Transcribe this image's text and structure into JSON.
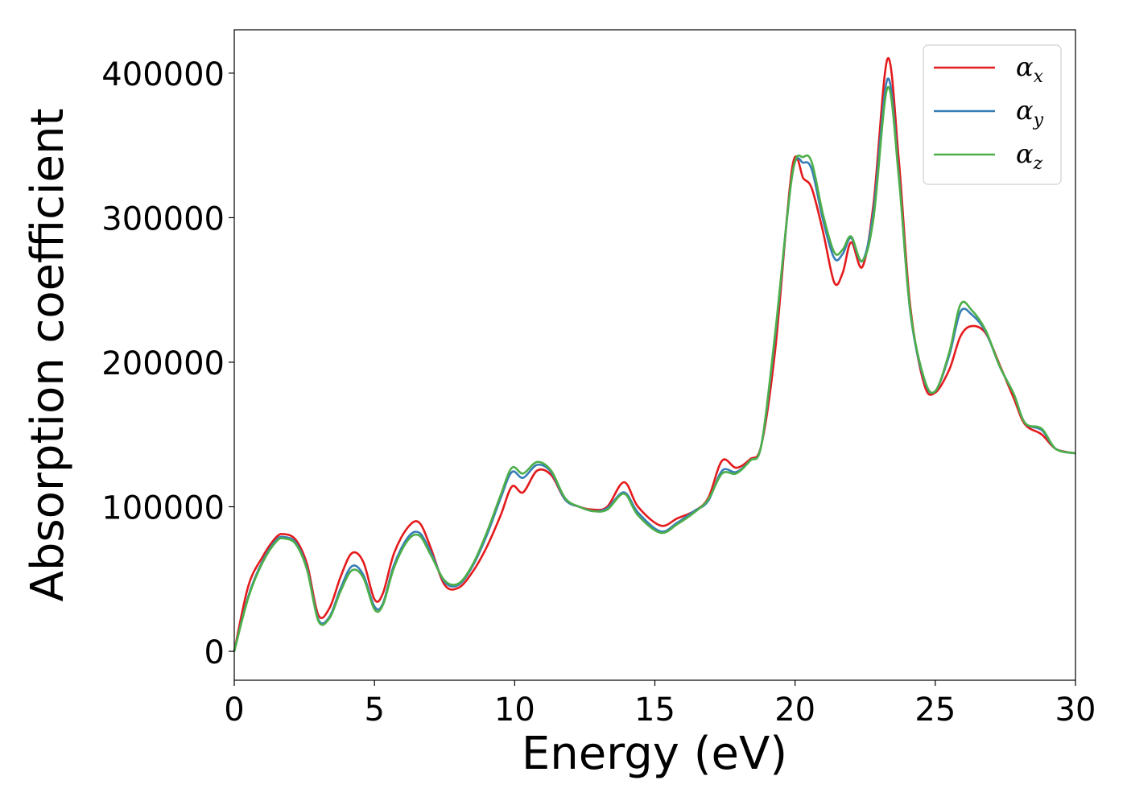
{
  "chart_data": {
    "type": "line",
    "xlabel": "Energy (eV)",
    "ylabel": "Absorption coefficient",
    "xlim": [
      0,
      30
    ],
    "ylim": [
      -20000,
      430000
    ],
    "xticks": [
      0,
      5,
      10,
      15,
      20,
      25,
      30
    ],
    "xtick_labels": [
      "0",
      "5",
      "10",
      "15",
      "20",
      "25",
      "30"
    ],
    "yticks": [
      0,
      100000,
      200000,
      300000,
      400000
    ],
    "ytick_labels": [
      "0",
      "100000",
      "200000",
      "300000",
      "400000"
    ],
    "grid": false,
    "legend_position": "top-right",
    "x": [
      0,
      0.5,
      1,
      1.5,
      1.8,
      2.2,
      2.6,
      3.0,
      3.4,
      3.8,
      4.2,
      4.6,
      5.0,
      5.3,
      5.7,
      6.2,
      6.6,
      7.0,
      7.5,
      8.0,
      8.5,
      9.0,
      9.5,
      9.9,
      10.3,
      10.8,
      11.3,
      11.8,
      12.3,
      12.8,
      13.3,
      13.9,
      14.4,
      15.2,
      15.8,
      16.4,
      16.9,
      17.4,
      17.9,
      18.4,
      18.8,
      19.3,
      19.9,
      20.3,
      20.6,
      21.0,
      21.4,
      21.7,
      22.0,
      22.4,
      22.8,
      23.3,
      23.7,
      24.1,
      24.6,
      25.0,
      25.5,
      25.9,
      26.3,
      26.8,
      27.3,
      27.8,
      28.2,
      28.8,
      29.3,
      30.0
    ],
    "series": [
      {
        "name": "αx",
        "color": "#e41a1c",
        "values": [
          0,
          45000,
          65000,
          79000,
          81000,
          77000,
          60000,
          25000,
          30000,
          52000,
          68000,
          62000,
          36000,
          40000,
          68000,
          86000,
          89000,
          72000,
          46000,
          44000,
          55000,
          72000,
          94000,
          114000,
          110000,
          125000,
          122000,
          105000,
          100000,
          98000,
          100000,
          117000,
          100000,
          87000,
          92000,
          97000,
          106000,
          132000,
          127000,
          133000,
          143000,
          210000,
          335000,
          327000,
          320000,
          290000,
          255000,
          262000,
          283000,
          266000,
          310000,
          410000,
          340000,
          240000,
          185000,
          179000,
          195000,
          218000,
          225000,
          220000,
          198000,
          175000,
          157000,
          150000,
          140000,
          137000
        ]
      },
      {
        "name": "αy",
        "color": "#377eb8",
        "values": [
          0,
          38000,
          62000,
          77000,
          79000,
          75000,
          57000,
          22000,
          24000,
          44000,
          59000,
          53000,
          31000,
          33000,
          60000,
          79000,
          82000,
          69000,
          48000,
          46000,
          59000,
          80000,
          106000,
          124000,
          120000,
          129000,
          124000,
          105000,
          100000,
          97000,
          99000,
          110000,
          96000,
          83000,
          89000,
          97000,
          104000,
          125000,
          124000,
          132000,
          143000,
          220000,
          330000,
          338000,
          333000,
          298000,
          272000,
          275000,
          286000,
          270000,
          305000,
          396000,
          330000,
          236000,
          188000,
          180000,
          205000,
          235000,
          233000,
          221000,
          197000,
          178000,
          158000,
          153000,
          140000,
          137000
        ]
      },
      {
        "name": "αz",
        "color": "#4daf4a",
        "values": [
          0,
          37000,
          61000,
          76000,
          78000,
          74000,
          56000,
          21000,
          23000,
          42000,
          56000,
          51000,
          29000,
          32000,
          58000,
          77000,
          80000,
          67000,
          49000,
          47000,
          60000,
          82000,
          108000,
          127000,
          123000,
          131000,
          125000,
          106000,
          100000,
          97000,
          98000,
          109000,
          94000,
          82000,
          88000,
          96000,
          105000,
          123000,
          123000,
          132000,
          143000,
          222000,
          330000,
          342000,
          338000,
          302000,
          276000,
          278000,
          287000,
          270000,
          300000,
          390000,
          328000,
          237000,
          189000,
          180000,
          207000,
          240000,
          236000,
          222000,
          197000,
          178000,
          158000,
          154000,
          140000,
          137000
        ]
      }
    ]
  }
}
